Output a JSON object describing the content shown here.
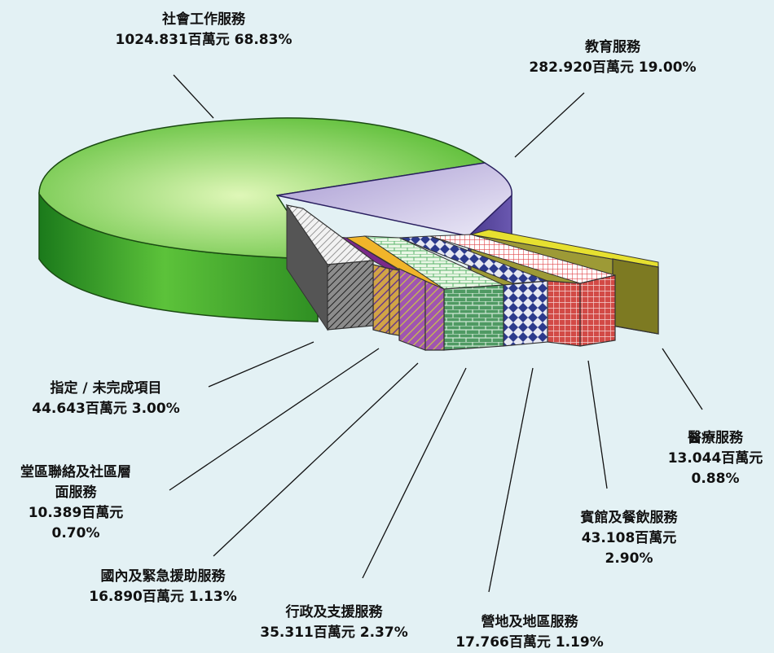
{
  "chart_data": {
    "type": "pie",
    "title": "",
    "unit": "百萬元",
    "slices": [
      {
        "name": "社會工作服務",
        "value": 1024.831,
        "percent": 68.83,
        "value_text": "1024.831百萬元",
        "percent_text": "68.83%",
        "color": "#58b830"
      },
      {
        "name": "教育服務",
        "value": 282.92,
        "percent": 19.0,
        "value_text": "282.920百萬元",
        "percent_text": "19.00%",
        "color": "#b6a6d8"
      },
      {
        "name": "醫療服務",
        "value": 13.044,
        "percent": 0.88,
        "value_text": "13.044百萬元",
        "percent_text": "0.88%",
        "color": "#a9a23a"
      },
      {
        "name": "賓館及餐飲服務",
        "value": 43.108,
        "percent": 2.9,
        "value_text": "43.108百萬元",
        "percent_text": "2.90%",
        "color": "#c8322f"
      },
      {
        "name": "營地及地區服務",
        "value": 17.766,
        "percent": 1.19,
        "value_text": "17.766百萬元",
        "percent_text": "1.19%",
        "color": "#2c3a8c"
      },
      {
        "name": "行政及支援服務",
        "value": 35.311,
        "percent": 2.37,
        "value_text": "35.311百萬元",
        "percent_text": "2.37%",
        "color": "#2f8a4e"
      },
      {
        "name": "國內及緊急援助服務",
        "value": 16.89,
        "percent": 1.13,
        "value_text": "16.890百萬元",
        "percent_text": "1.13%",
        "color": "#8a2c8c"
      },
      {
        "name": "堂區聯絡及社區層面服務",
        "value": 10.389,
        "percent": 0.7,
        "value_text": "10.389百萬元",
        "percent_text": "0.70%",
        "color": "#b07a2a"
      },
      {
        "name": "指定 / 未完成項目",
        "value": 44.643,
        "percent": 3.0,
        "value_text": "44.643百萬元",
        "percent_text": "3.00%",
        "color": "#6e6e6e"
      }
    ],
    "labels": {
      "social": {
        "line1": "社會工作服務",
        "line2": "1024.831百萬元 68.83%"
      },
      "education": {
        "line1": "教育服務",
        "line2": "282.920百萬元 19.00%"
      },
      "medical": {
        "line1": "醫療服務",
        "line2": "13.044百萬元",
        "line3": "0.88%"
      },
      "hotel": {
        "line1": "賓館及餐飲服務",
        "line2": "43.108百萬元",
        "line3": "2.90%"
      },
      "camp": {
        "line1": "營地及地區服務",
        "line2": "17.766百萬元 1.19%"
      },
      "admin": {
        "line1": "行政及支援服務",
        "line2": "35.311百萬元 2.37%"
      },
      "domestic": {
        "line1": "國內及緊急援助服務",
        "line2": "16.890百萬元 1.13%"
      },
      "parish": {
        "line1": "堂區聯絡及社區層",
        "line2": "面服務",
        "line3": "10.389百萬元",
        "line4": "0.70%"
      },
      "designated": {
        "line1": "指定 / 未完成項目",
        "line2": "44.643百萬元 3.00%"
      }
    }
  }
}
